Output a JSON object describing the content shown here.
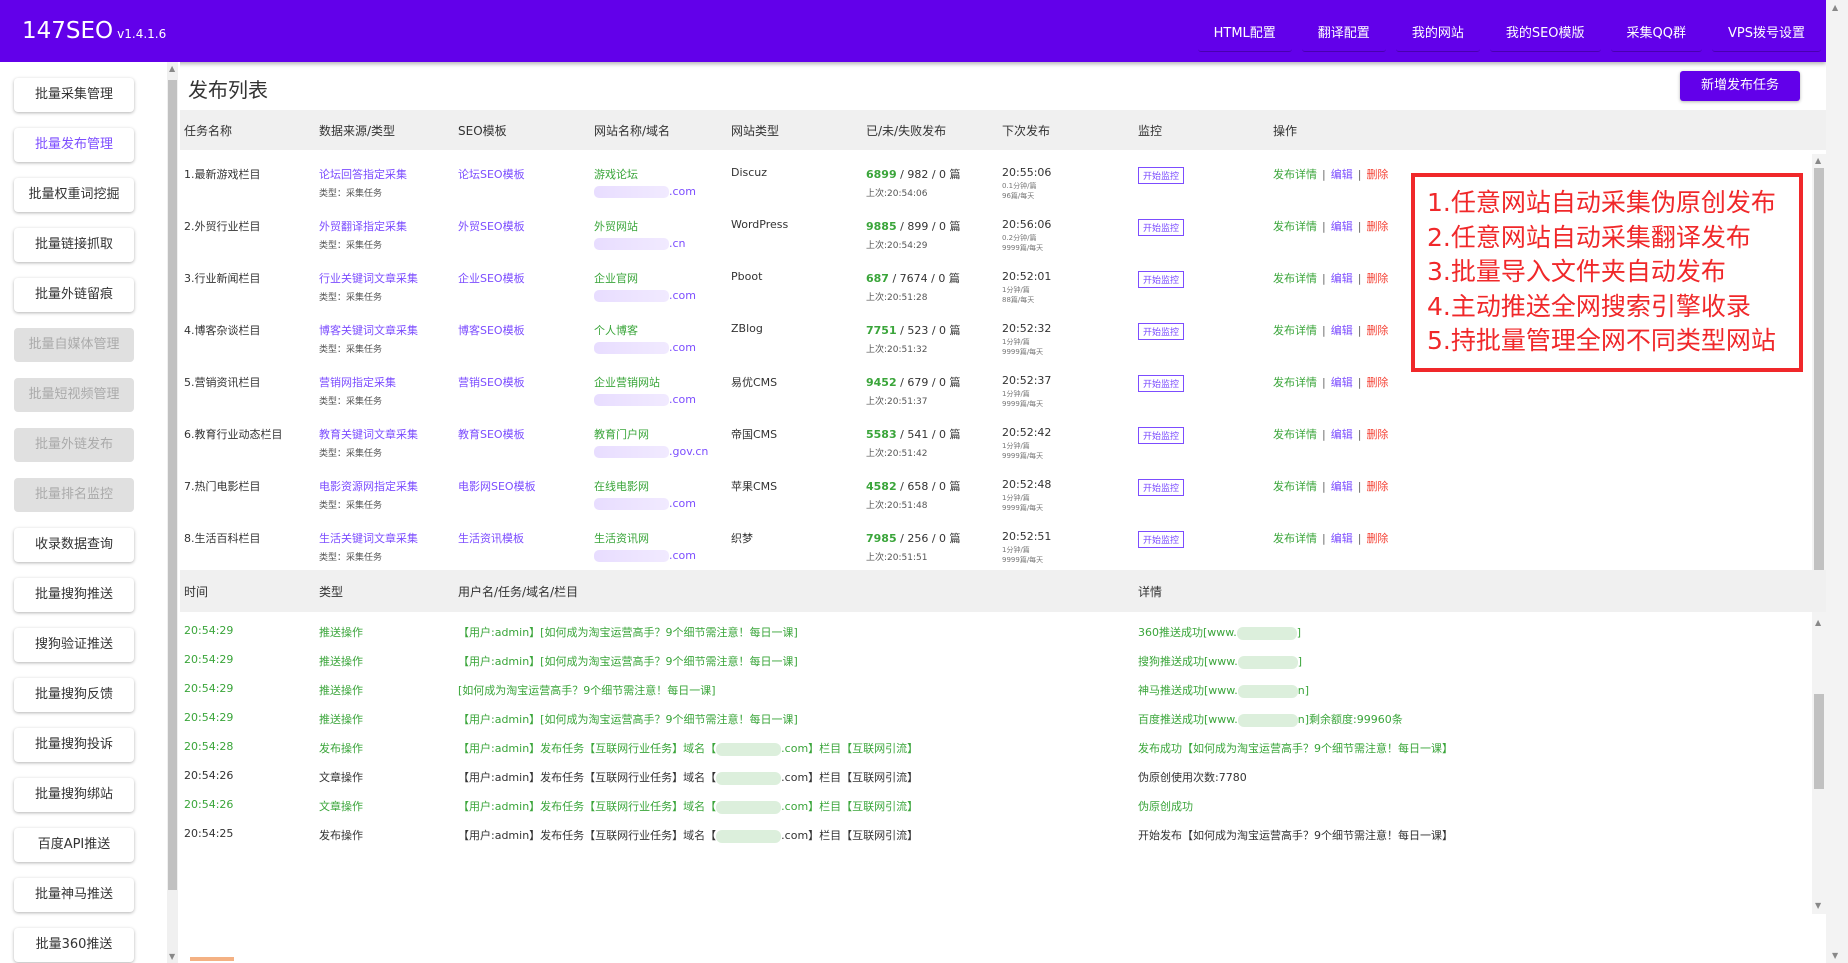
{
  "app": {
    "name": "147SEO",
    "version": "v1.4.1.6"
  },
  "topnav": [
    "HTML配置",
    "翻译配置",
    "我的网站",
    "我的SEO模版",
    "采集QQ群",
    "VPS拨号设置"
  ],
  "sidebar": [
    {
      "label": "批量采集管理",
      "state": "normal"
    },
    {
      "label": "批量发布管理",
      "state": "active"
    },
    {
      "label": "批量权重词挖掘",
      "state": "normal"
    },
    {
      "label": "批量链接抓取",
      "state": "normal"
    },
    {
      "label": "批量外链留痕",
      "state": "normal"
    },
    {
      "label": "批量自媒体管理",
      "state": "disabled"
    },
    {
      "label": "批量短视频管理",
      "state": "disabled"
    },
    {
      "label": "批量外链发布",
      "state": "disabled"
    },
    {
      "label": "批量排名监控",
      "state": "disabled"
    },
    {
      "label": "收录数据查询",
      "state": "normal"
    },
    {
      "label": "批量搜狗推送",
      "state": "normal"
    },
    {
      "label": "搜狗验证推送",
      "state": "normal"
    },
    {
      "label": "批量搜狗反馈",
      "state": "normal"
    },
    {
      "label": "批量搜狗投诉",
      "state": "normal"
    },
    {
      "label": "批量搜狗绑站",
      "state": "normal"
    },
    {
      "label": "百度API推送",
      "state": "normal"
    },
    {
      "label": "批量神马推送",
      "state": "normal"
    },
    {
      "label": "批量360推送",
      "state": "normal"
    }
  ],
  "page": {
    "title": "发布列表",
    "add_button": "新增发布任务"
  },
  "table": {
    "headers": [
      "任务名称",
      "数据来源/类型",
      "SEO模板",
      "网站名称/域名",
      "网站类型",
      "已/未/失败发布",
      "下次发布",
      "监控",
      "操作"
    ],
    "type_label": "类型：采集任务",
    "monitor_label": "开始监控",
    "ops": {
      "detail": "发布详情",
      "edit": "编辑",
      "delete": "删除",
      "sep": "|"
    },
    "rows": [
      {
        "name": "1.最新游戏栏目",
        "source": "论坛回答指定采集",
        "seo": "论坛SEO模板",
        "site": "游戏论坛",
        "domain": ".com",
        "cms": "Discuz",
        "ok": "6899",
        "rest": " / 982 / 0 篇",
        "last": "上次:20:54:06",
        "next": "20:55:06",
        "interval": "0.1分钟/篇",
        "daily": "96篇/每天"
      },
      {
        "name": "2.外贸行业栏目",
        "source": "外贸翻译指定采集",
        "seo": "外贸SEO模板",
        "site": "外贸网站",
        "domain": ".cn",
        "cms": "WordPress",
        "ok": "9885",
        "rest": " / 899 / 0 篇",
        "last": "上次:20:54:29",
        "next": "20:56:06",
        "interval": "0.2分钟/篇",
        "daily": "9999篇/每天"
      },
      {
        "name": "3.行业新闻栏目",
        "source": "行业关键词文章采集",
        "seo": "企业SEO模板",
        "site": "企业官网",
        "domain": ".com",
        "cms": "Pboot",
        "ok": "687",
        "rest": " / 7674 / 0 篇",
        "last": "上次:20:51:28",
        "next": "20:52:01",
        "interval": "1分钟/篇",
        "daily": "88篇/每天"
      },
      {
        "name": "4.博客杂谈栏目",
        "source": "博客关键词文章采集",
        "seo": "博客SEO模板",
        "site": "个人博客",
        "domain": ".com",
        "cms": "ZBlog",
        "ok": "7751",
        "rest": " / 523 / 0 篇",
        "last": "上次:20:51:32",
        "next": "20:52:32",
        "interval": "1分钟/篇",
        "daily": "9999篇/每天"
      },
      {
        "name": "5.营销资讯栏目",
        "source": "营销网指定采集",
        "seo": "营销SEO模板",
        "site": "企业营销网站",
        "domain": ".com",
        "cms": "易优CMS",
        "ok": "9452",
        "rest": " / 679 / 0 篇",
        "last": "上次:20:51:37",
        "next": "20:52:37",
        "interval": "1分钟/篇",
        "daily": "9999篇/每天"
      },
      {
        "name": "6.教育行业动态栏目",
        "source": "教育关键词文章采集",
        "seo": "教育SEO模板",
        "site": "教育门户网",
        "domain": ".gov.cn",
        "cms": "帝国CMS",
        "ok": "5583",
        "rest": " / 541 / 0 篇",
        "last": "上次:20:51:42",
        "next": "20:52:42",
        "interval": "1分钟/篇",
        "daily": "9999篇/每天"
      },
      {
        "name": "7.热门电影栏目",
        "source": "电影资源网指定采集",
        "seo": "电影网SEO模板",
        "site": "在线电影网",
        "domain": ".com",
        "cms": "苹果CMS",
        "ok": "4582",
        "rest": " / 658 / 0 篇",
        "last": "上次:20:51:48",
        "next": "20:52:48",
        "interval": "1分钟/篇",
        "daily": "9999篇/每天"
      },
      {
        "name": "8.生活百科栏目",
        "source": "生活关键词文章采集",
        "seo": "生活资讯模板",
        "site": "生活资讯网",
        "domain": ".com",
        "cms": "织梦",
        "ok": "7985",
        "rest": " / 256 / 0 篇",
        "last": "上次:20:51:51",
        "next": "20:52:51",
        "interval": "1分钟/篇",
        "daily": "9999篇/每天"
      }
    ]
  },
  "features": [
    "1.任意网站自动采集伪原创发布",
    "2.任意网站自动采集翻译发布",
    "3.批量导入文件夹自动发布",
    "4.主动推送全网搜索引擎收录",
    "5.持批量管理全网不同类型网站"
  ],
  "log": {
    "headers": [
      "时间",
      "类型",
      "用户名/任务/域名/栏目",
      "详情"
    ],
    "rows": [
      {
        "time": "20:54:29",
        "type": "推送操作",
        "info": "【用户:admin】[如何成为淘宝运营高手？9个细节需注意！每日一课]",
        "detail": "360推送成功[www.",
        "detail_end": "]",
        "color": "green"
      },
      {
        "time": "20:54:29",
        "type": "推送操作",
        "info": "【用户:admin】[如何成为淘宝运营高手？9个细节需注意！每日一课]",
        "detail": "搜狗推送成功[www.",
        "detail_end": "]",
        "color": "green"
      },
      {
        "time": "20:54:29",
        "type": "推送操作",
        "info": "[如何成为淘宝运营高手？9个细节需注意！每日一课]",
        "detail": "神马推送成功[www.",
        "detail_end": "n]",
        "color": "green"
      },
      {
        "time": "20:54:29",
        "type": "推送操作",
        "info": "【用户:admin】[如何成为淘宝运营高手？9个细节需注意！每日一课]",
        "detail": "百度推送成功[www.",
        "detail_end": "n]剩余额度:99960条",
        "color": "green"
      },
      {
        "time": "20:54:28",
        "type": "发布操作",
        "info": "【用户:admin】发布任务【互联网行业任务】域名【",
        "info_end": ".com】栏目【互联网引流】",
        "detail": "发布成功【如何成为淘宝运营高手？9个细节需注意！每日一课】",
        "color": "green"
      },
      {
        "time": "20:54:26",
        "type": "文章操作",
        "info": "【用户:admin】发布任务【互联网行业任务】域名【",
        "info_end": ".com】栏目【互联网引流】",
        "detail": "伪原创使用次数:7780",
        "color": "dark"
      },
      {
        "time": "20:54:26",
        "type": "文章操作",
        "info": "【用户:admin】发布任务【互联网行业任务】域名【",
        "info_end": ".com】栏目【互联网引流】",
        "detail": "伪原创成功",
        "color": "green"
      },
      {
        "time": "20:54:25",
        "type": "发布操作",
        "info": "【用户:admin】发布任务【互联网行业任务】域名【",
        "info_end": ".com】栏目【互联网引流】",
        "detail": "开始发布【如何成为淘宝运营高手？9个细节需注意！每日一课】",
        "color": "dark"
      }
    ]
  },
  "colors": {
    "brand": "#6200ea",
    "link_purple": "#7c4dff",
    "green": "#3aa53a",
    "red": "#f44336",
    "annotation": "#f0282a"
  }
}
